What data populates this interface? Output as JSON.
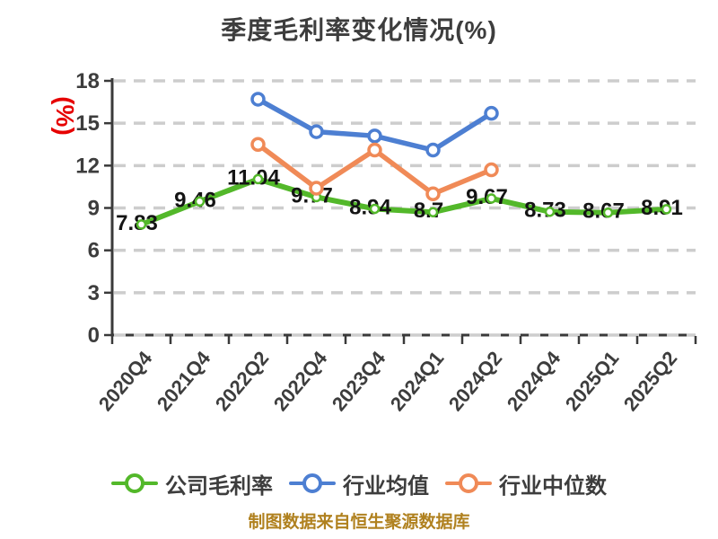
{
  "title": "季度毛利率变化情况(%)",
  "y_axis_unit": "(%)",
  "footer": {
    "text": "制图数据来自恒生聚源数据库"
  },
  "colors": {
    "green": "#53b82a",
    "blue": "#4d7fd2",
    "orange": "#f08a57",
    "grid": "#cdcdcd",
    "axis": "#3a3a3a",
    "text": "#3d3d3d",
    "data_label": "#141414",
    "unit_red": "#e60000",
    "footer_gold": "#b0811f"
  },
  "chart_data": {
    "type": "line",
    "title": "季度毛利率变化情况(%)",
    "categories": [
      "2020Q4",
      "2021Q4",
      "2022Q2",
      "2022Q4",
      "2023Q4",
      "2024Q1",
      "2024Q2",
      "2024Q4",
      "2025Q1",
      "2025Q2"
    ],
    "xlabel": "",
    "ylabel": "(%)",
    "ylim": [
      0,
      18
    ],
    "y_ticks": [
      0,
      3,
      6,
      9,
      12,
      15,
      18
    ],
    "grid": "horizontal-dashed",
    "legend_position": "bottom",
    "x_tick_rotation": 45,
    "series": [
      {
        "name": "公司毛利率",
        "color": "#53b82a",
        "labels_shown": true,
        "values": [
          7.83,
          9.46,
          11.04,
          9.77,
          8.94,
          8.7,
          9.67,
          8.73,
          8.67,
          8.91
        ]
      },
      {
        "name": "行业均值",
        "color": "#4d7fd2",
        "labels_shown": false,
        "values": [
          null,
          null,
          16.7,
          14.4,
          14.1,
          13.1,
          15.7,
          null,
          null,
          null
        ]
      },
      {
        "name": "行业中位数",
        "color": "#f08a57",
        "labels_shown": false,
        "values": [
          null,
          null,
          13.5,
          10.4,
          13.1,
          10.0,
          11.7,
          null,
          null,
          null
        ]
      }
    ]
  }
}
